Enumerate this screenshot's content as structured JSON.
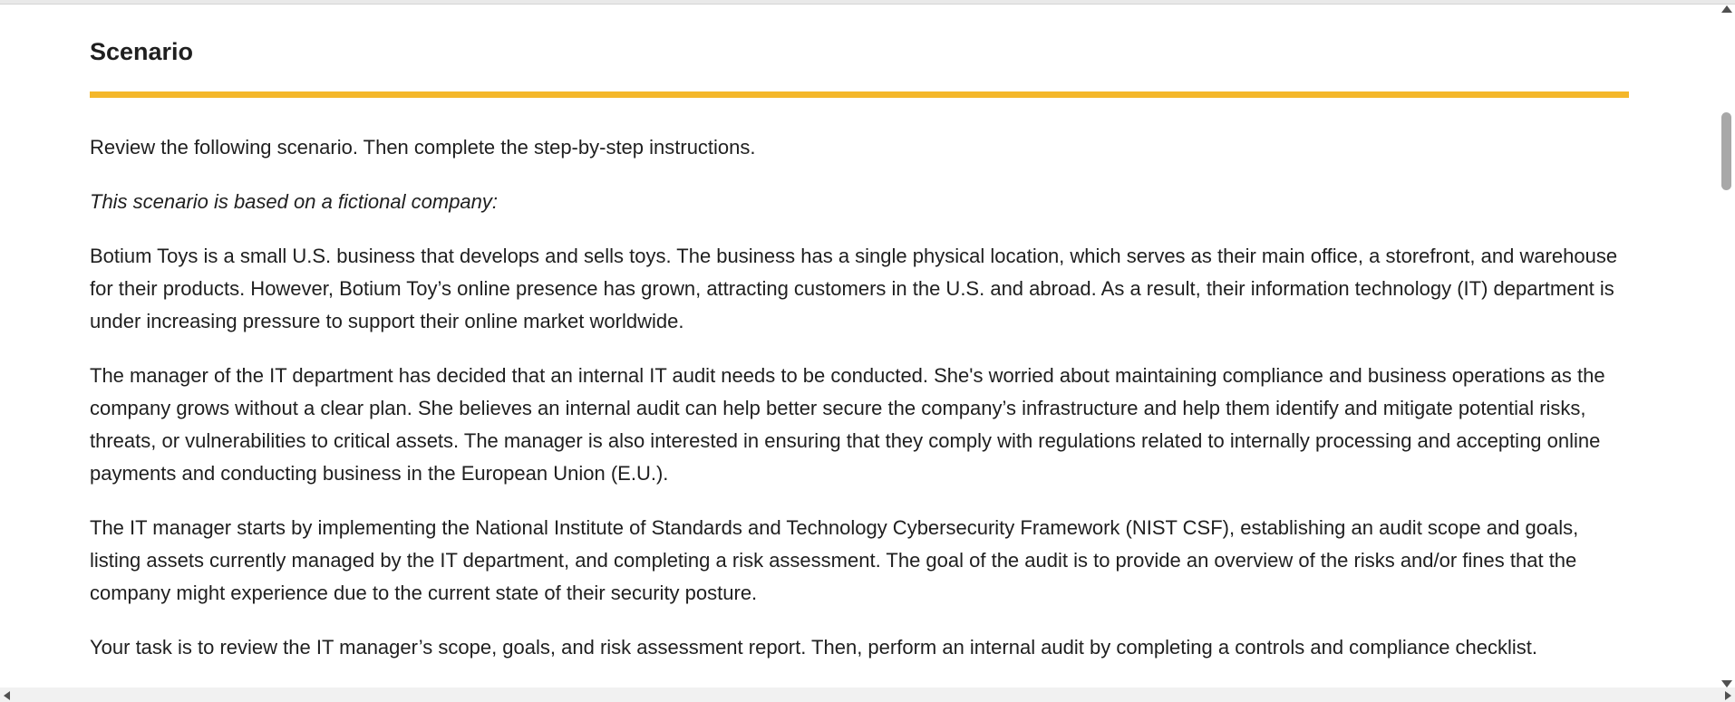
{
  "colors": {
    "accent_rule": "#f4b72a",
    "text": "#1f1f1f"
  },
  "section": {
    "title": "Scenario",
    "paragraphs": [
      "Review the following scenario. Then complete the step-by-step instructions.",
      "This scenario is based on a fictional company:",
      "Botium Toys is a small U.S. business that develops and sells toys. The business has a single physical location, which serves as their main office, a storefront, and warehouse for their products. However, Botium Toy’s online presence has grown, attracting customers in the U.S. and abroad. As a result, their information technology (IT) department is under increasing pressure to support their online market worldwide.",
      "The manager of the IT department has decided that an internal IT audit needs to be conducted. She's worried about maintaining compliance and business operations as the company grows without a clear plan. She believes an internal audit can help better secure the company’s infrastructure and help them identify and mitigate potential risks, threats, or vulnerabilities to critical assets. The manager is also interested in ensuring that they comply with regulations related to internally processing and accepting online payments and conducting business in the European Union (E.U.).",
      "The IT manager starts by implementing the National Institute of Standards and Technology Cybersecurity Framework (NIST CSF), establishing an audit scope and goals, listing assets currently managed by the IT department, and completing a risk assessment. The goal of the audit is to provide an overview of the risks and/or fines that the company might experience due to the current state of their security posture.",
      "Your task is to review the IT manager’s scope, goals, and risk assessment report. Then, perform an internal audit by completing a controls and compliance checklist."
    ]
  },
  "icons": {
    "scroll_up": "scroll-up-arrow-icon",
    "scroll_down": "scroll-down-arrow-icon",
    "scroll_left": "scroll-left-arrow-icon",
    "scroll_right": "scroll-right-arrow-icon"
  }
}
